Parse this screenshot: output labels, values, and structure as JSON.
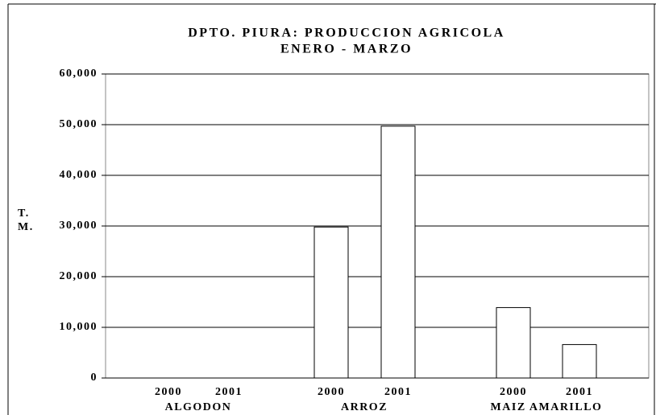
{
  "chart_data": {
    "type": "bar",
    "title": "DPTO. PIURA: PRODUCCION AGRICOLA",
    "subtitle": "ENERO - MARZO",
    "ylabel": [
      "T.",
      "M."
    ],
    "categories": [
      "2000",
      "2001",
      "2000",
      "2001",
      "2000",
      "2001"
    ],
    "groups": [
      "ALGODON",
      "ARROZ",
      "MAIZ AMARILLO"
    ],
    "values": [
      0,
      0,
      29800,
      49700,
      13900,
      6600
    ],
    "color": "#ffffff",
    "ylim": [
      0,
      60000
    ],
    "yticks": [
      0,
      {
        "value": 10000,
        "label": "10,000"
      },
      {
        "value": 20000,
        "label": "20,000"
      },
      {
        "value": 30000,
        "label": "30,000"
      },
      {
        "value": 40000,
        "label": "40,000"
      },
      {
        "value": 50000,
        "label": "50,000"
      },
      {
        "value": 60000,
        "label": "60,000"
      }
    ],
    "grid": true
  }
}
